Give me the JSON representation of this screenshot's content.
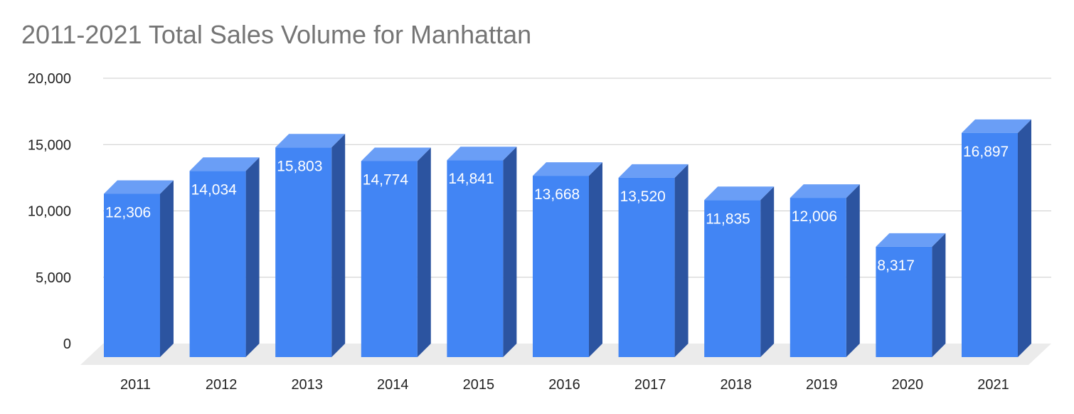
{
  "chart_data": {
    "type": "bar",
    "style": "3d",
    "title": "2011-2021 Total Sales Volume for Manhattan",
    "xlabel": "",
    "ylabel": "",
    "categories": [
      "2011",
      "2012",
      "2013",
      "2014",
      "2015",
      "2016",
      "2017",
      "2018",
      "2019",
      "2020",
      "2021"
    ],
    "values": [
      12306,
      14034,
      15803,
      14774,
      14841,
      13668,
      13520,
      11835,
      12006,
      8317,
      16897
    ],
    "data_labels": [
      "12,306",
      "14,034",
      "15,803",
      "14,774",
      "14,841",
      "13,668",
      "13,520",
      "11,835",
      "12,006",
      "8,317",
      "16,897"
    ],
    "yticks": [
      0,
      5000,
      10000,
      15000,
      20000
    ],
    "ytick_labels": [
      "0",
      "5,000",
      "10,000",
      "15,000",
      "20,000"
    ],
    "ylim": [
      0,
      20000
    ],
    "grid": true,
    "legend": "none",
    "colors": {
      "bar_front": "#4285f4",
      "bar_top": "#6a9ef6",
      "bar_side": "#2c54a0",
      "floor": "#ebebeb",
      "grid": "#cccccc",
      "title": "#757575",
      "data_label": "#ffffff"
    }
  }
}
